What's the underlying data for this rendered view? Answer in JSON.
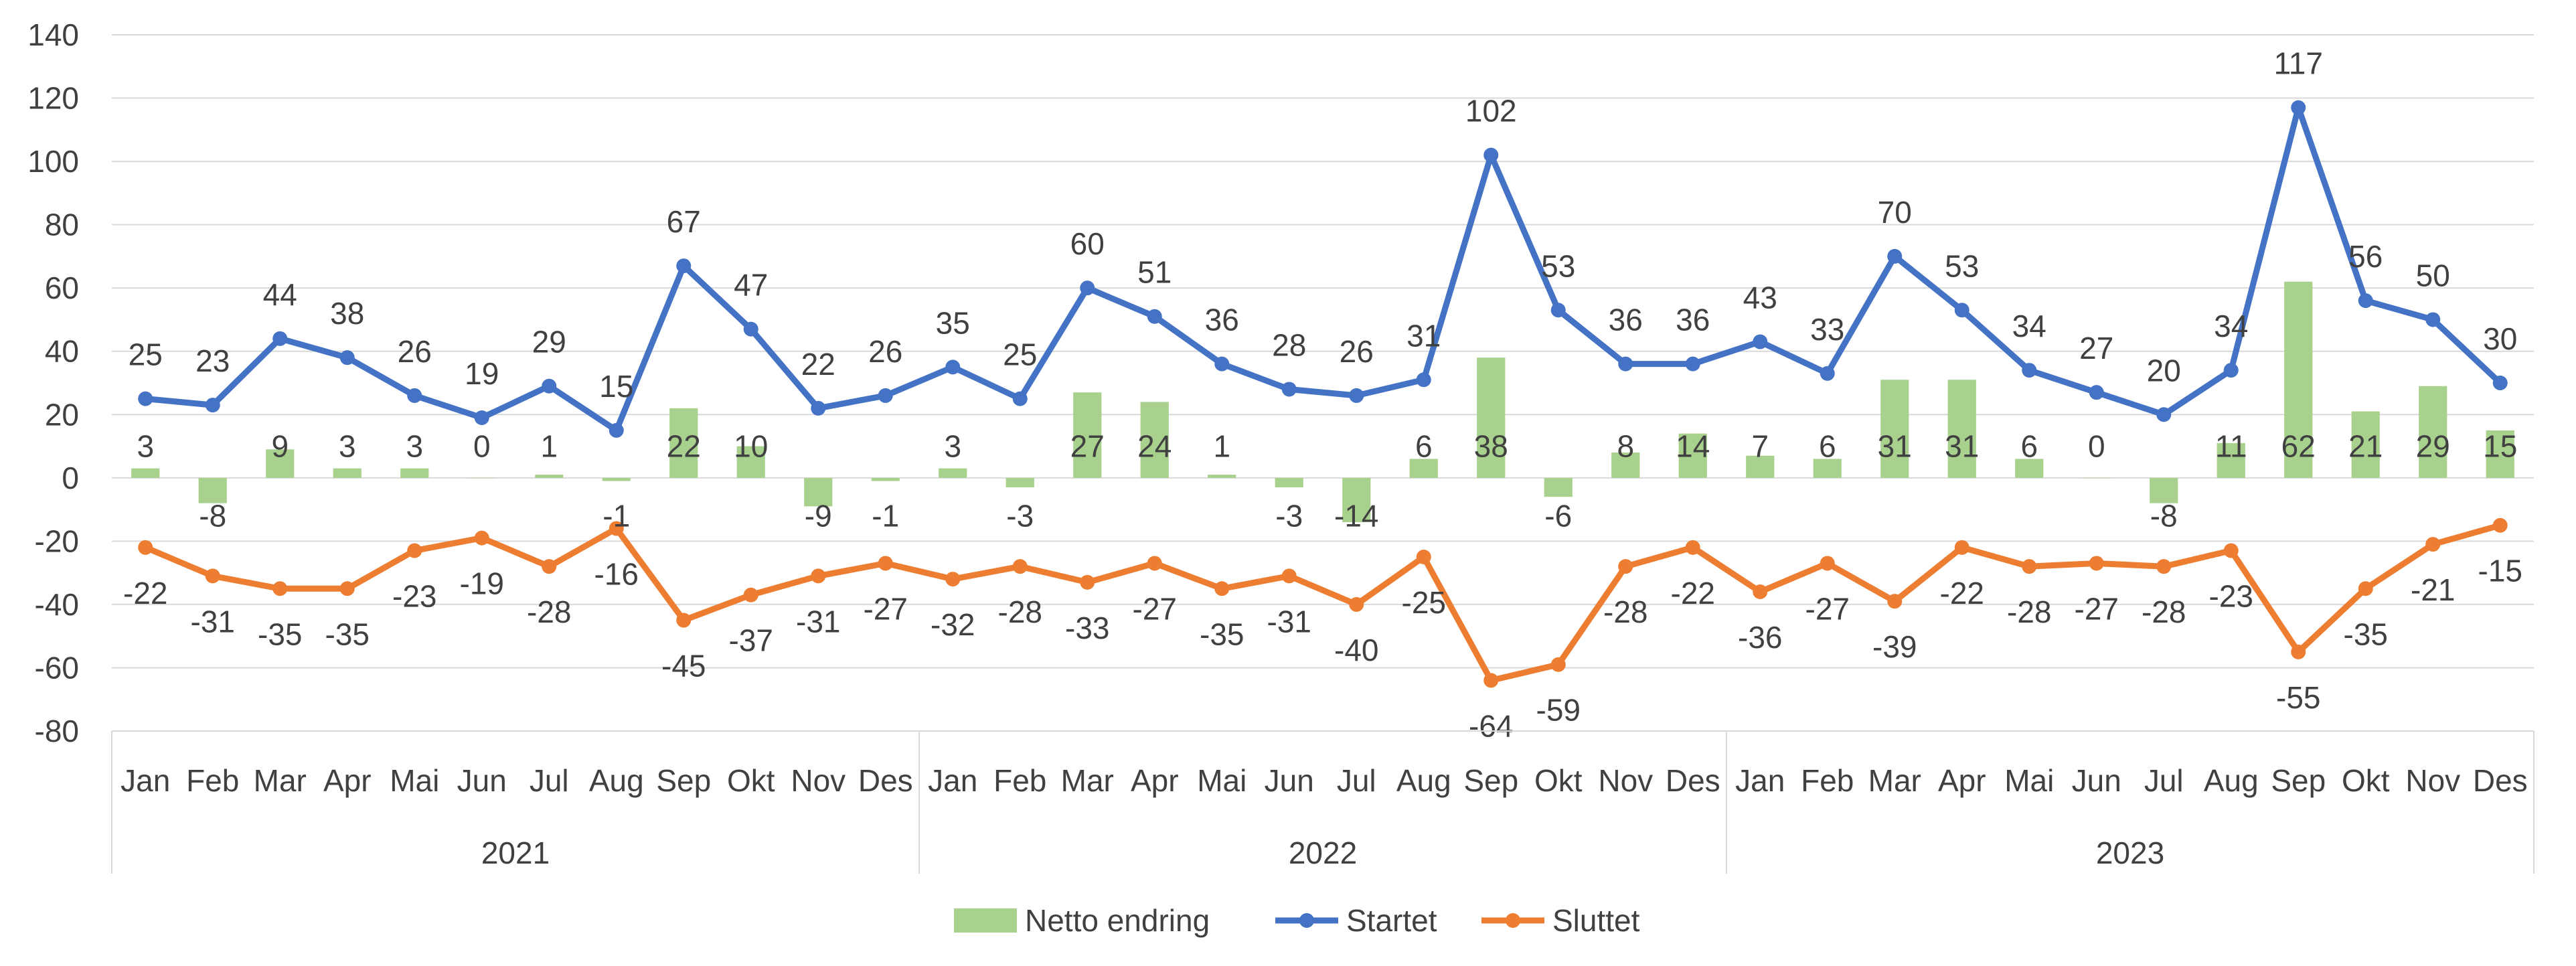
{
  "chart_data": {
    "type": "bar+line",
    "title": "",
    "xlabel": "",
    "ylabel": "",
    "ylim": [
      -80,
      140
    ],
    "yticks": [
      140,
      120,
      100,
      80,
      60,
      40,
      20,
      0,
      -20,
      -40,
      -60,
      -80
    ],
    "grid": true,
    "legend_position": "bottom",
    "years": [
      "2021",
      "2022",
      "2023"
    ],
    "months": [
      "Jan",
      "Feb",
      "Mar",
      "Apr",
      "Mai",
      "Jun",
      "Jul",
      "Aug",
      "Sep",
      "Okt",
      "Nov",
      "Des"
    ],
    "series": [
      {
        "name": "Netto endring",
        "kind": "bar",
        "color": "#a9d18e",
        "values": [
          3,
          -8,
          9,
          3,
          3,
          0,
          1,
          -1,
          22,
          10,
          -9,
          -1,
          3,
          -3,
          27,
          24,
          1,
          -3,
          -14,
          6,
          38,
          -6,
          8,
          14,
          7,
          6,
          31,
          31,
          6,
          0,
          -8,
          11,
          62,
          21,
          29,
          15
        ]
      },
      {
        "name": "Startet",
        "kind": "line",
        "color": "#4472c4",
        "values": [
          25,
          23,
          44,
          38,
          26,
          19,
          29,
          15,
          67,
          47,
          22,
          26,
          35,
          25,
          60,
          51,
          36,
          28,
          26,
          31,
          102,
          53,
          36,
          36,
          43,
          33,
          70,
          53,
          34,
          27,
          20,
          34,
          117,
          56,
          50,
          30
        ]
      },
      {
        "name": "Sluttet",
        "kind": "line",
        "color": "#ed7d31",
        "values": [
          -22,
          -31,
          -35,
          -35,
          -23,
          -19,
          -28,
          -16,
          -45,
          -37,
          -31,
          -27,
          -32,
          -28,
          -33,
          -27,
          -35,
          -31,
          -40,
          -25,
          -64,
          -59,
          -28,
          -22,
          -36,
          -27,
          -39,
          -22,
          -28,
          -27,
          -28,
          -23,
          -55,
          -35,
          -21,
          -15
        ]
      }
    ]
  }
}
